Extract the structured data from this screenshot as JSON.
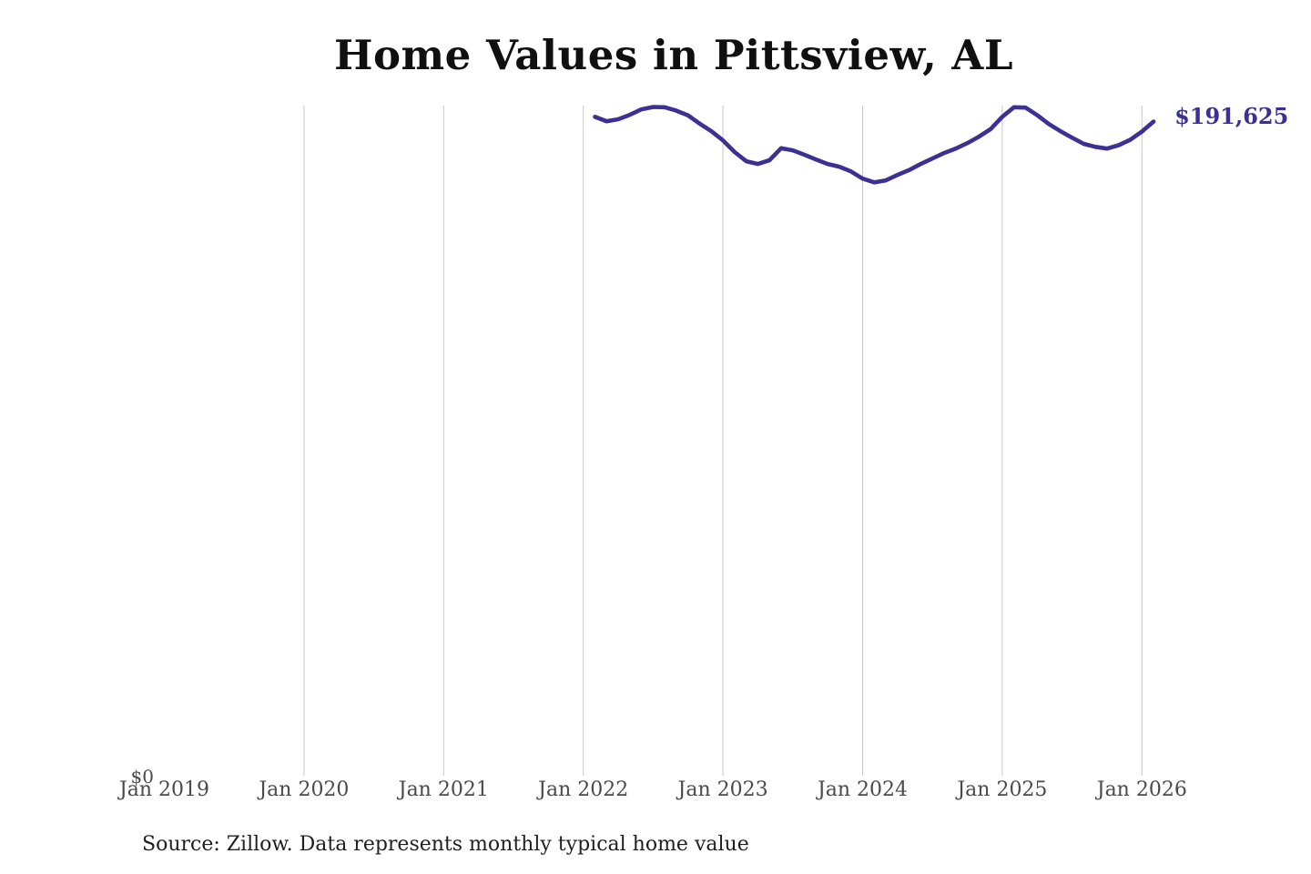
{
  "header": {
    "title": "Home Values in Pittsview, AL"
  },
  "footer": {
    "source_note": "Source: Zillow. Data represents monthly typical home value"
  },
  "chart_data": {
    "type": "line",
    "title": "Home Values in Pittsview, AL",
    "xlabel": "",
    "ylabel": "",
    "grid": "vertical-only",
    "legend": "none",
    "ylim": [
      0,
      196000
    ],
    "xlim": [
      "2019-01",
      "2026-04"
    ],
    "y_ticks": [
      {
        "label": "$0",
        "value": 0
      }
    ],
    "x_ticks": [
      {
        "label": "Jan 2019",
        "month": "2019-01",
        "gridline": false
      },
      {
        "label": "Jan 2020",
        "month": "2020-01",
        "gridline": true
      },
      {
        "label": "Jan 2021",
        "month": "2021-01",
        "gridline": true
      },
      {
        "label": "Jan 2022",
        "month": "2022-01",
        "gridline": true
      },
      {
        "label": "Jan 2023",
        "month": "2023-01",
        "gridline": true
      },
      {
        "label": "Jan 2024",
        "month": "2024-01",
        "gridline": true
      },
      {
        "label": "Jan 2025",
        "month": "2025-01",
        "gridline": true
      },
      {
        "label": "Jan 2026",
        "month": "2026-01",
        "gridline": true
      }
    ],
    "end_label": "$191,625",
    "end_value": 191625,
    "colors": {
      "line": "#3a3193",
      "gridline": "#c9c9c9",
      "tick_text": "#4a4a4a",
      "end_label": "#3a3193"
    },
    "series": [
      {
        "name": "Monthly typical home value",
        "months": [
          "2022-01",
          "2022-02",
          "2022-03",
          "2022-04",
          "2022-05",
          "2022-06",
          "2022-07",
          "2022-08",
          "2022-09",
          "2022-10",
          "2022-11",
          "2022-12",
          "2023-01",
          "2023-02",
          "2023-03",
          "2023-04",
          "2023-05",
          "2023-06",
          "2023-07",
          "2023-08",
          "2023-09",
          "2023-10",
          "2023-11",
          "2023-12",
          "2024-01",
          "2024-02",
          "2024-03",
          "2024-04",
          "2024-05",
          "2024-06",
          "2024-07",
          "2024-08",
          "2024-09",
          "2024-10",
          "2024-11",
          "2024-12",
          "2025-01",
          "2025-02",
          "2025-03",
          "2025-04",
          "2025-05",
          "2025-06",
          "2025-07",
          "2025-08",
          "2025-09",
          "2025-10",
          "2025-11",
          "2025-12",
          "2026-01"
        ],
        "values": [
          193000,
          191700,
          192300,
          193600,
          195200,
          195900,
          195800,
          194800,
          193400,
          191000,
          188800,
          186100,
          182700,
          180000,
          179200,
          180300,
          183800,
          183200,
          181900,
          180500,
          179200,
          178400,
          177000,
          174900,
          173800,
          174400,
          176000,
          177400,
          179200,
          180800,
          182400,
          183700,
          185300,
          187200,
          189400,
          193000,
          195800,
          195700,
          193500,
          190900,
          188800,
          186900,
          185100,
          184200,
          183700,
          184700,
          186300,
          188700,
          191625
        ]
      }
    ]
  }
}
